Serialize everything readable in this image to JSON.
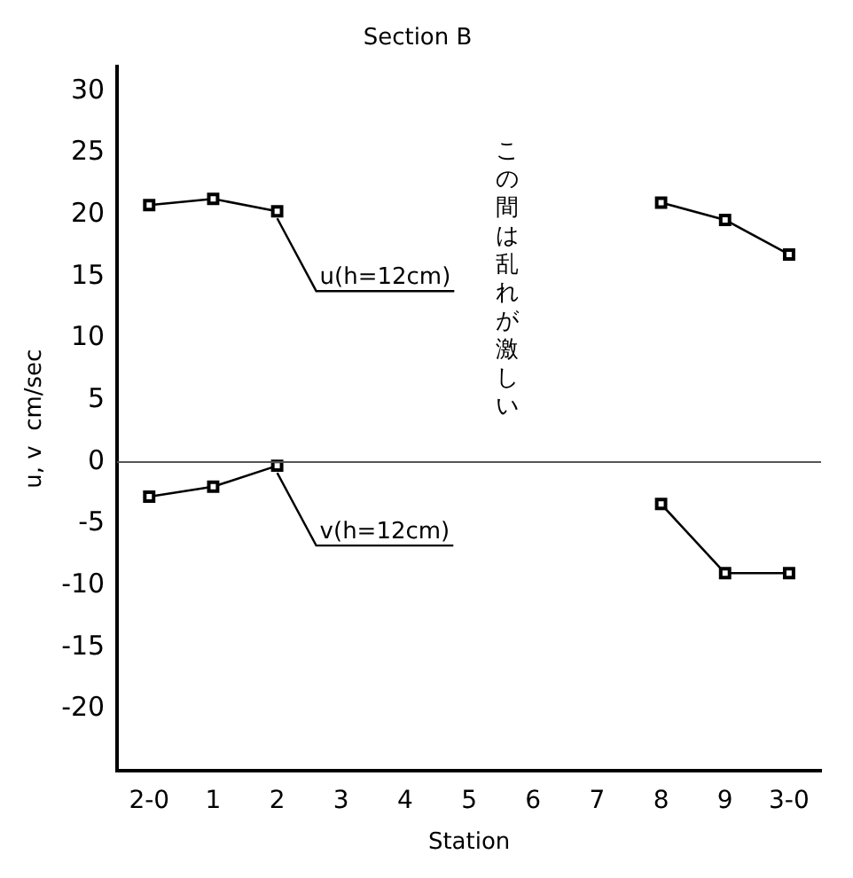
{
  "chart_data": {
    "type": "line",
    "title": "Section B",
    "xlabel": "Station",
    "ylabel": "u, v  cm/sec",
    "categories": [
      "2-0",
      "1",
      "2",
      "3",
      "4",
      "5",
      "6",
      "7",
      "8",
      "9",
      "3-0"
    ],
    "series": [
      {
        "name": "u(h=12cm)",
        "color": "#000000",
        "values": [
          20.8,
          21.3,
          20.3,
          null,
          null,
          null,
          null,
          null,
          21,
          19.6,
          16.8
        ]
      },
      {
        "name": "v(h=12cm)",
        "color": "#000000",
        "values": [
          -2.8,
          -2,
          -0.3,
          null,
          null,
          null,
          null,
          null,
          -3.4,
          -9,
          -9
        ]
      }
    ],
    "ylim": [
      -25,
      32
    ],
    "yticks": [
      -20,
      -15,
      -10,
      -5,
      0,
      5,
      10,
      15,
      20,
      25,
      30
    ],
    "ref_lines": [
      {
        "axis": "y",
        "value": 0,
        "color": "#555555"
      }
    ],
    "annotations": [
      "この間は乱れが激しい"
    ],
    "marker": "square",
    "line_style": "solid",
    "grid": false,
    "legend": false
  }
}
